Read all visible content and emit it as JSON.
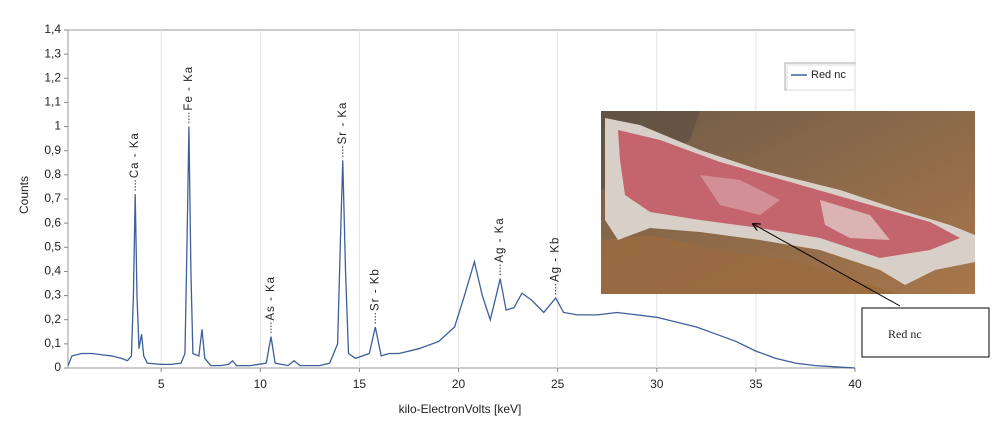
{
  "chart_data": {
    "type": "line",
    "y_label": "Counts",
    "x_label": "kilo-ElectronVolts [keV]",
    "x": [
      0.3,
      0.5,
      1,
      1.5,
      2,
      2.5,
      3,
      3.3,
      3.5,
      3.6,
      3.69,
      3.78,
      3.88,
      4.01,
      4.12,
      4.3,
      5,
      5.5,
      6,
      6.2,
      6.3,
      6.4,
      6.5,
      6.6,
      6.9,
      7.06,
      7.2,
      7.5,
      8,
      8.4,
      8.6,
      8.8,
      9.5,
      10.3,
      10.54,
      10.75,
      11.4,
      11.7,
      12,
      13,
      13.5,
      13.9,
      14.05,
      14.16,
      14.3,
      14.45,
      14.8,
      15.5,
      15.8,
      16.1,
      16.5,
      17,
      18,
      19,
      19.8,
      20.3,
      20.8,
      21.2,
      21.6,
      21.9,
      22.1,
      22.4,
      22.8,
      23.2,
      23.7,
      24.3,
      24.7,
      24.9,
      25.3,
      26,
      27,
      28,
      29,
      30,
      31,
      32,
      33,
      34,
      35,
      36,
      37,
      38,
      39,
      40
    ],
    "series": [
      {
        "name": "Red nc",
        "color": "#3d5f9a",
        "values": [
          0.01,
          0.05,
          0.06,
          0.06,
          0.055,
          0.05,
          0.04,
          0.03,
          0.05,
          0.3,
          0.72,
          0.3,
          0.08,
          0.14,
          0.05,
          0.02,
          0.015,
          0.015,
          0.02,
          0.06,
          0.5,
          1.0,
          0.4,
          0.06,
          0.05,
          0.16,
          0.04,
          0.01,
          0.01,
          0.015,
          0.03,
          0.01,
          0.01,
          0.02,
          0.13,
          0.02,
          0.01,
          0.03,
          0.01,
          0.01,
          0.02,
          0.1,
          0.55,
          0.86,
          0.4,
          0.06,
          0.04,
          0.06,
          0.17,
          0.05,
          0.06,
          0.06,
          0.08,
          0.11,
          0.17,
          0.3,
          0.44,
          0.3,
          0.2,
          0.3,
          0.37,
          0.24,
          0.25,
          0.31,
          0.28,
          0.23,
          0.27,
          0.29,
          0.23,
          0.22,
          0.22,
          0.23,
          0.22,
          0.21,
          0.19,
          0.17,
          0.14,
          0.11,
          0.07,
          0.04,
          0.02,
          0.01,
          0.005,
          0
        ]
      }
    ],
    "xlim": [
      0.3,
      40
    ],
    "xticks": [
      5,
      10,
      15,
      20,
      25,
      30,
      35,
      40
    ],
    "ylim": [
      0,
      1.4
    ],
    "yticks": [
      0,
      {
        "value": 0.1,
        "label": "0,1"
      },
      {
        "value": 0.2,
        "label": "0,2"
      },
      {
        "value": 0.3,
        "label": "0,3"
      },
      {
        "value": 0.4,
        "label": "0,4"
      },
      {
        "value": 0.5,
        "label": "0,5"
      },
      {
        "value": 0.6,
        "label": "0,6"
      },
      {
        "value": 0.7,
        "label": "0,7"
      },
      {
        "value": 0.8,
        "label": "0,8"
      },
      {
        "value": 0.9,
        "label": "0,9"
      },
      1,
      {
        "value": 1.1,
        "label": "1,1"
      },
      {
        "value": 1.2,
        "label": "1,2"
      },
      {
        "value": 1.3,
        "label": "1,3"
      },
      {
        "value": 1.4,
        "label": "1,4"
      }
    ],
    "grid": "x",
    "legend": "upper right",
    "annotations": [
      {
        "text": "Ca - Ka",
        "x": 3.69,
        "y": 0.72
      },
      {
        "text": "Fe - Ka",
        "x": 6.4,
        "y": 1.0
      },
      {
        "text": "As - Ka",
        "x": 10.54,
        "y": 0.13
      },
      {
        "text": "Sr - Ka",
        "x": 14.16,
        "y": 0.86
      },
      {
        "text": "Sr - Kb",
        "x": 15.8,
        "y": 0.17
      },
      {
        "text": "Ag - Ka",
        "x": 22.1,
        "y": 0.37
      },
      {
        "text": "Ag - Kb",
        "x": 24.9,
        "y": 0.29
      }
    ],
    "callout": "Red nc"
  }
}
